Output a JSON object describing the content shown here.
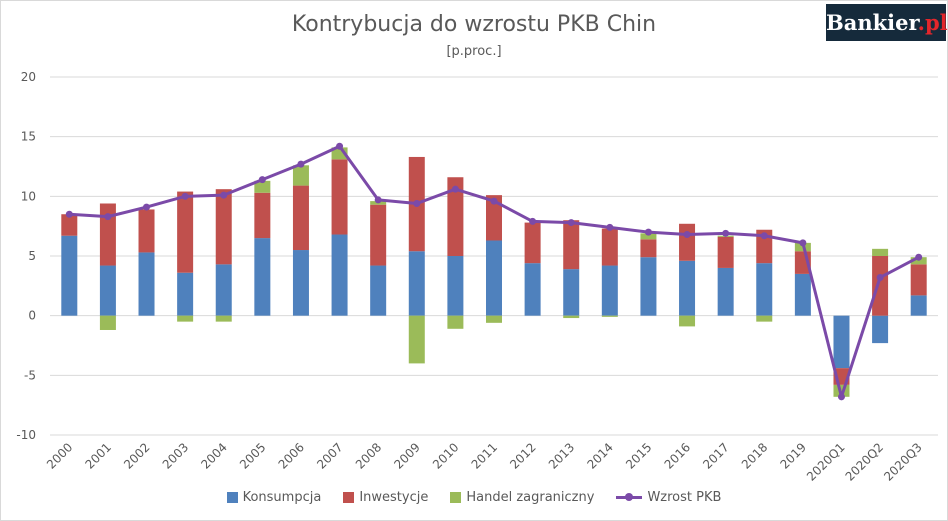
{
  "logo": {
    "text": "Bankier",
    "suffix": ".pl"
  },
  "chart_data": {
    "type": "bar",
    "title": "Kontrybucja do wzrostu PKB Chin",
    "subtitle": "[p.proc.]",
    "categories": [
      "2000",
      "2001",
      "2002",
      "2003",
      "2004",
      "2005",
      "2006",
      "2007",
      "2008",
      "2009",
      "2010",
      "2011",
      "2012",
      "2013",
      "2014",
      "2015",
      "2016",
      "2017",
      "2018",
      "2019",
      "2020Q1",
      "2020Q2",
      "2020Q3"
    ],
    "ylim": [
      -10,
      20
    ],
    "yticks": [
      -10,
      -5,
      0,
      5,
      10,
      15,
      20
    ],
    "grid": true,
    "stacked": true,
    "legend_position": "bottom",
    "series": [
      {
        "name": "Konsumpcja",
        "type": "bar",
        "color": "#4f81bd",
        "values": [
          6.7,
          4.2,
          5.3,
          3.6,
          4.3,
          6.5,
          5.5,
          6.8,
          4.2,
          5.4,
          5.0,
          6.3,
          4.4,
          3.9,
          4.2,
          4.9,
          4.6,
          4.0,
          4.4,
          3.5,
          -4.4,
          -2.3,
          1.7
        ]
      },
      {
        "name": "Inwestycje",
        "type": "bar",
        "color": "#c0504d",
        "values": [
          1.8,
          5.2,
          3.6,
          6.8,
          6.3,
          3.8,
          5.4,
          6.3,
          5.1,
          7.9,
          6.6,
          3.8,
          3.4,
          4.1,
          3.1,
          1.5,
          3.1,
          2.6,
          2.8,
          1.9,
          -1.4,
          5.0,
          2.6
        ]
      },
      {
        "name": "Handel zagraniczny",
        "type": "bar",
        "color": "#9bbb59",
        "values": [
          0.0,
          -1.2,
          0.0,
          -0.5,
          -0.5,
          1.0,
          1.7,
          1.0,
          0.3,
          -4.0,
          -1.1,
          -0.6,
          0.0,
          -0.2,
          -0.1,
          0.5,
          -0.9,
          0.1,
          -0.5,
          0.7,
          -1.0,
          0.6,
          0.6
        ]
      },
      {
        "name": "Wzrost PKB",
        "type": "line",
        "color": "#7b4aa8",
        "values": [
          8.5,
          8.3,
          9.1,
          10.0,
          10.1,
          11.4,
          12.7,
          14.2,
          9.7,
          9.4,
          10.6,
          9.6,
          7.9,
          7.8,
          7.4,
          7.0,
          6.8,
          6.9,
          6.7,
          6.1,
          -6.8,
          3.2,
          4.9
        ]
      }
    ]
  }
}
